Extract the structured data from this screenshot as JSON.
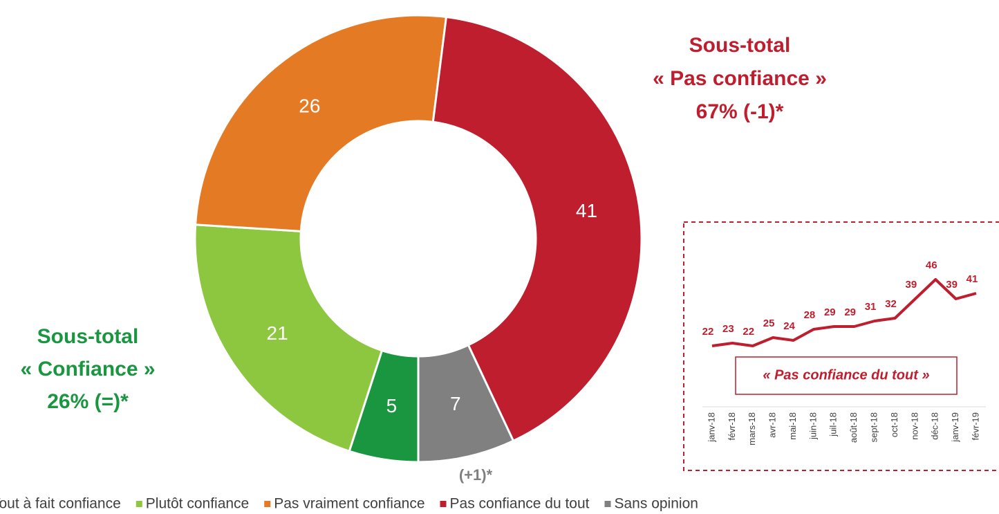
{
  "chart_data": [
    {
      "type": "pie",
      "donut": true,
      "categories": [
        "Tout à fait confiance",
        "Plutôt confiance",
        "Pas vraiment confiance",
        "Pas confiance du tout",
        "Sans opinion"
      ],
      "values": [
        5,
        21,
        26,
        41,
        7
      ],
      "colors": [
        "#1a9641",
        "#8dc63f",
        "#e57a25",
        "#be1e2d",
        "#808080"
      ],
      "annotations": [
        "Sous-total",
        "« Pas confiance »",
        "67% (-1)*",
        "Sous-total",
        "« Confiance »",
        "26% (=)*",
        "(+1)*"
      ]
    },
    {
      "type": "line",
      "title": "« Pas confiance du tout »",
      "categories": [
        "janv-18",
        "févr-18",
        "mars-18",
        "avr-18",
        "mai-18",
        "juin-18",
        "juil-18",
        "août-18",
        "sept-18",
        "oct-18",
        "nov-18",
        "déc-18",
        "janv-19",
        "févr-19"
      ],
      "values": [
        22,
        23,
        22,
        25,
        24,
        28,
        29,
        29,
        31,
        32,
        39,
        46,
        39,
        41
      ],
      "color": "#be1e2d",
      "ylim": [
        0,
        50
      ]
    }
  ]
}
